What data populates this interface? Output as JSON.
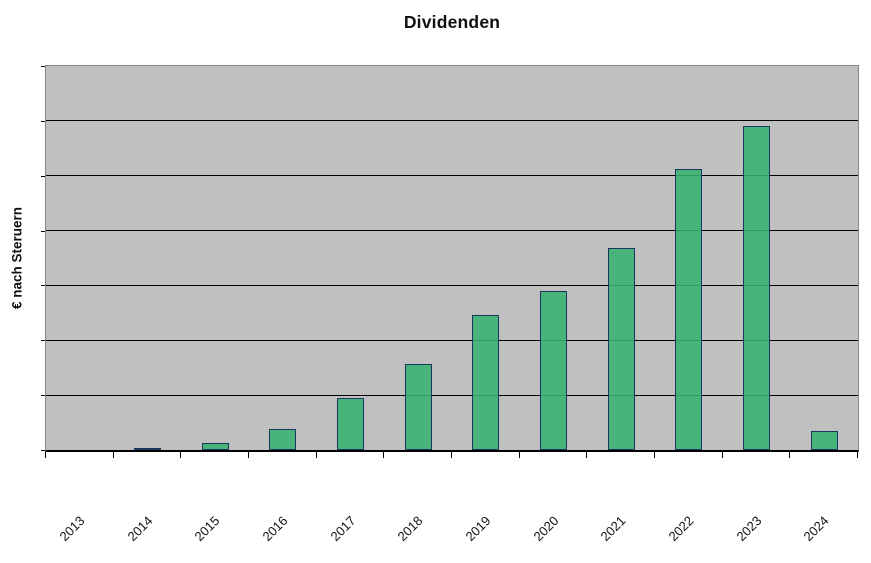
{
  "window": {
    "background": "#ffffff"
  },
  "chart_data": {
    "type": "bar",
    "title": "Dividenden",
    "xlabel": "",
    "ylabel": "€ nach Steruern",
    "categories": [
      "2013",
      "2014",
      "2015",
      "2016",
      "2017",
      "2018",
      "2019",
      "2020",
      "2021",
      "2022",
      "2023",
      "2024"
    ],
    "values": [
      0,
      0.04,
      0.13,
      0.38,
      0.95,
      1.56,
      2.46,
      2.9,
      3.69,
      5.13,
      5.9,
      0.35
    ],
    "value_scale_note": "y-axis has no numeric tick labels; values estimated in gridline units (1.0 = one horizontal gridline interval)",
    "ylim": [
      0,
      7
    ],
    "y_gridline_interval": 1,
    "grid": "horizontal-black-on-gray",
    "legend": "none",
    "x_tick_label_rotation_deg": 45,
    "colors": {
      "bar_fill": "#38b26e",
      "bar_border": "#17375e",
      "plot_background": "#c0c0c0",
      "gridline": "#000000",
      "plot_border": "#868686",
      "axis_line": "#000000",
      "text": "#111111"
    }
  }
}
